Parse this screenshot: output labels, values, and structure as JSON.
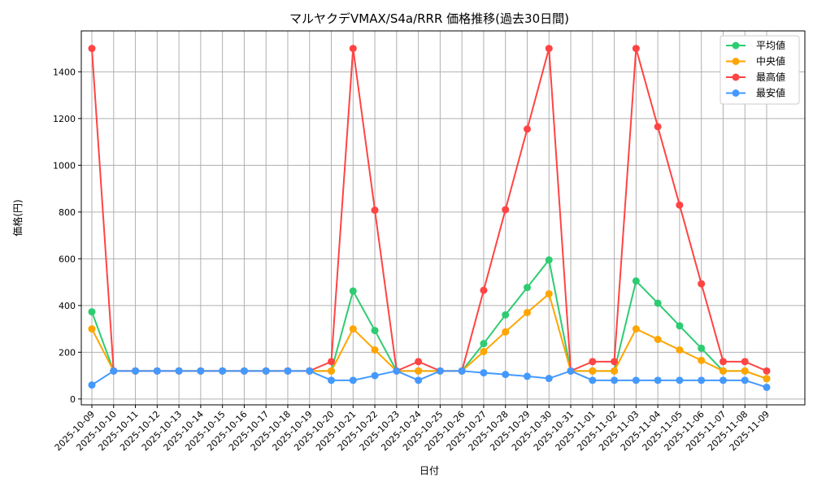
{
  "chart_data": {
    "type": "line",
    "title": "マルヤクデVMAX/S4a/RRR 価格推移(過去30日間)",
    "xlabel": "日付",
    "ylabel": "価格(円)",
    "ylim": [
      -25,
      1575
    ],
    "yticks": [
      0,
      200,
      400,
      600,
      800,
      1000,
      1200,
      1400
    ],
    "grid": true,
    "legend_position": "top-right",
    "x": [
      "2025-10-09",
      "2025-10-10",
      "2025-10-11",
      "2025-10-12",
      "2025-10-13",
      "2025-10-14",
      "2025-10-15",
      "2025-10-16",
      "2025-10-17",
      "2025-10-18",
      "2025-10-19",
      "2025-10-20",
      "2025-10-21",
      "2025-10-22",
      "2025-10-23",
      "2025-10-24",
      "2025-10-25",
      "2025-10-26",
      "2025-10-27",
      "2025-10-28",
      "2025-10-29",
      "2025-10-30",
      "2025-10-31",
      "2025-11-01",
      "2025-11-02",
      "2025-11-03",
      "2025-11-04",
      "2025-11-05",
      "2025-11-06",
      "2025-11-07",
      "2025-11-08",
      "2025-11-09"
    ],
    "series": [
      {
        "name": "平均値",
        "color": "#2ecc71",
        "values": [
          373,
          120,
          120,
          120,
          120,
          120,
          120,
          120,
          120,
          120,
          120,
          120,
          462,
          293,
          120,
          120,
          120,
          120,
          237,
          360,
          477,
          595,
          120,
          120,
          120,
          505,
          410,
          313,
          217,
          120,
          120,
          87
        ]
      },
      {
        "name": "中央値",
        "color": "#ffa500",
        "values": [
          300,
          120,
          120,
          120,
          120,
          120,
          120,
          120,
          120,
          120,
          120,
          120,
          300,
          210,
          120,
          120,
          120,
          120,
          203,
          287,
          370,
          450,
          120,
          120,
          120,
          300,
          255,
          210,
          165,
          120,
          120,
          87
        ]
      },
      {
        "name": "最高値",
        "color": "#ff4444",
        "values": [
          1500,
          120,
          120,
          120,
          120,
          120,
          120,
          120,
          120,
          120,
          120,
          160,
          1500,
          808,
          120,
          160,
          120,
          120,
          465,
          810,
          1155,
          1500,
          120,
          160,
          160,
          1500,
          1165,
          830,
          493,
          160,
          160,
          120
        ]
      },
      {
        "name": "最安値",
        "color": "#4499ff",
        "values": [
          60,
          120,
          120,
          120,
          120,
          120,
          120,
          120,
          120,
          120,
          120,
          80,
          80,
          100,
          120,
          80,
          120,
          120,
          112,
          105,
          97,
          88,
          120,
          80,
          80,
          80,
          80,
          80,
          80,
          80,
          80,
          50
        ]
      }
    ]
  }
}
